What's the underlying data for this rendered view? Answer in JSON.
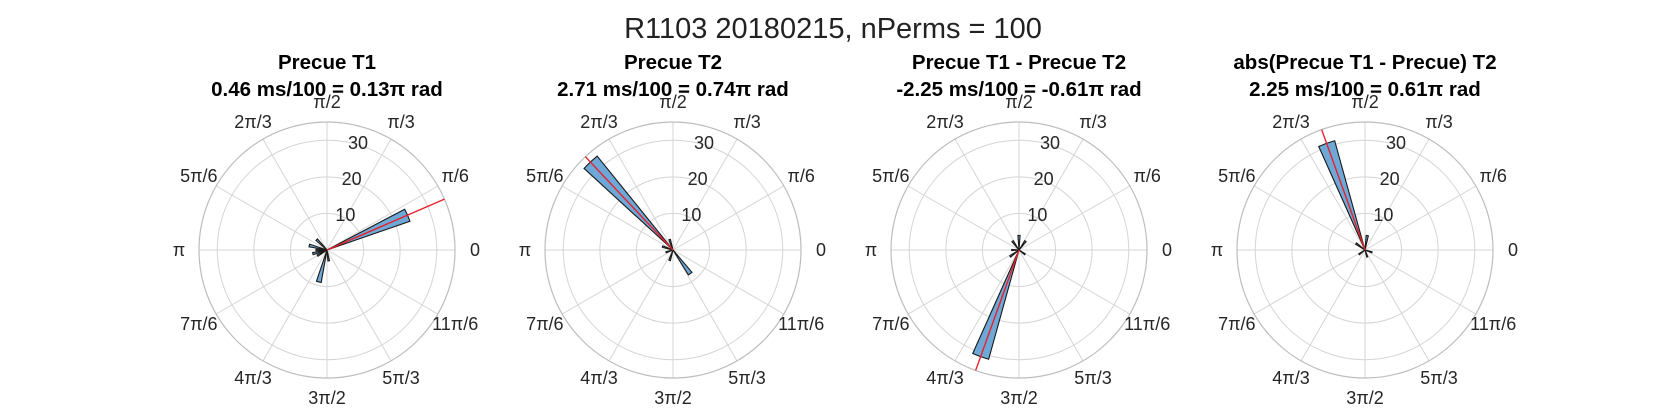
{
  "figure_title": "R1103 20180215, nPerms = 100",
  "angle_labels": [
    "0",
    "π/6",
    "π/3",
    "π/2",
    "2π/3",
    "5π/6",
    "π",
    "7π/6",
    "4π/3",
    "3π/2",
    "5π/3",
    "11π/6"
  ],
  "radial_ticks": [
    "10",
    "20",
    "30"
  ],
  "colors": {
    "bar_fill": "#6ea8d6",
    "bar_edge": "#1a1a1a",
    "mean_line": "#e8202a",
    "grid": "#d5d5d5"
  },
  "chart_data": [
    {
      "type": "polar-histogram",
      "title_line1": "Precue T1",
      "title_line2": "0.46 ms/100 = 0.13π rad",
      "rlim": [
        0,
        35
      ],
      "rticks": [
        10,
        20,
        30
      ],
      "mean_angle_pi": 0.13,
      "bars": [
        {
          "angle_pi": 0.13,
          "value": 24
        },
        {
          "angle_pi": 0.75,
          "value": 4
        },
        {
          "angle_pi": 0.92,
          "value": 5
        },
        {
          "angle_pi": 1.0,
          "value": 3
        },
        {
          "angle_pi": 1.08,
          "value": 4
        },
        {
          "angle_pi": 1.17,
          "value": 3
        },
        {
          "angle_pi": 1.42,
          "value": 9
        },
        {
          "angle_pi": 1.55,
          "value": 3
        }
      ]
    },
    {
      "type": "polar-histogram",
      "title_line1": "Precue T2",
      "title_line2": "2.71 ms/100 = 0.74π rad",
      "rlim": [
        0,
        35
      ],
      "rticks": [
        10,
        20,
        30
      ],
      "mean_angle_pi": 0.74,
      "bars": [
        {
          "angle_pi": 0.74,
          "value": 33
        },
        {
          "angle_pi": 0.6,
          "value": 3
        },
        {
          "angle_pi": 0.9,
          "value": 3
        },
        {
          "angle_pi": 1.1,
          "value": 2
        },
        {
          "angle_pi": 1.4,
          "value": 3
        },
        {
          "angle_pi": 1.7,
          "value": 8
        }
      ]
    },
    {
      "type": "polar-histogram",
      "title_line1": "Precue T1 - Precue T2",
      "title_line2": "-2.25 ms/100 = -0.61π rad",
      "rlim": [
        0,
        35
      ],
      "rticks": [
        10,
        20,
        30
      ],
      "mean_angle_pi": 1.39,
      "bars": [
        {
          "angle_pi": 1.39,
          "value": 31
        },
        {
          "angle_pi": 0.3,
          "value": 3
        },
        {
          "angle_pi": 0.5,
          "value": 4
        },
        {
          "angle_pi": 0.7,
          "value": 3
        },
        {
          "angle_pi": 1.0,
          "value": 2
        },
        {
          "angle_pi": 1.2,
          "value": 3
        },
        {
          "angle_pi": 1.8,
          "value": 2
        }
      ]
    },
    {
      "type": "polar-histogram",
      "title_line1": "abs(Precue T1 - Precue) T2",
      "title_line2": "2.25 ms/100 = 0.61π rad",
      "rlim": [
        0,
        35
      ],
      "rticks": [
        10,
        20,
        30
      ],
      "mean_angle_pi": 0.61,
      "bars": [
        {
          "angle_pi": 0.61,
          "value": 31
        },
        {
          "angle_pi": 0.45,
          "value": 4
        },
        {
          "angle_pi": 0.8,
          "value": 3
        },
        {
          "angle_pi": 1.2,
          "value": 2
        },
        {
          "angle_pi": 1.6,
          "value": 2
        },
        {
          "angle_pi": 1.9,
          "value": 2
        }
      ]
    }
  ]
}
